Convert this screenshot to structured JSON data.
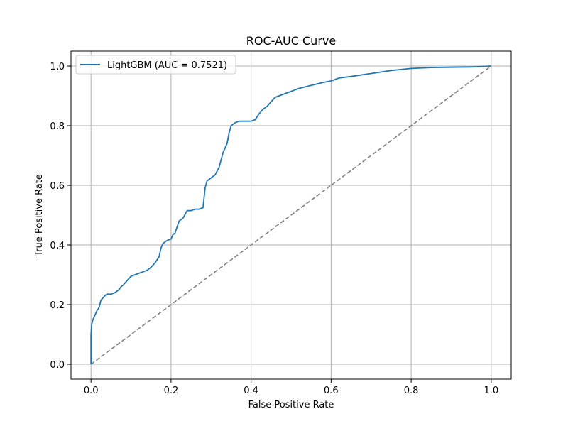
{
  "chart_data": {
    "type": "line",
    "title": "ROC-AUC Curve",
    "xlabel": "False Positive Rate",
    "ylabel": "True Positive Rate",
    "xlim": [
      -0.05,
      1.05
    ],
    "ylim": [
      -0.05,
      1.05
    ],
    "xticks": [
      0.0,
      0.2,
      0.4,
      0.6,
      0.8,
      1.0
    ],
    "yticks": [
      0.0,
      0.2,
      0.4,
      0.6,
      0.8,
      1.0
    ],
    "xtick_labels": [
      "0.0",
      "0.2",
      "0.4",
      "0.6",
      "0.8",
      "1.0"
    ],
    "ytick_labels": [
      "0.0",
      "0.2",
      "0.4",
      "0.6",
      "0.8",
      "1.0"
    ],
    "grid": true,
    "legend_position": "top-left",
    "series": [
      {
        "name": "LightGBM (AUC = 0.7521)",
        "color": "#1f77b4",
        "style": "solid",
        "x": [
          0.0,
          0.0,
          0.002,
          0.005,
          0.01,
          0.015,
          0.02,
          0.025,
          0.035,
          0.04,
          0.05,
          0.06,
          0.07,
          0.075,
          0.08,
          0.09,
          0.1,
          0.11,
          0.12,
          0.13,
          0.14,
          0.15,
          0.16,
          0.17,
          0.175,
          0.18,
          0.19,
          0.2,
          0.205,
          0.21,
          0.22,
          0.23,
          0.24,
          0.25,
          0.26,
          0.27,
          0.28,
          0.285,
          0.29,
          0.295,
          0.3,
          0.31,
          0.32,
          0.33,
          0.34,
          0.345,
          0.35,
          0.36,
          0.37,
          0.38,
          0.39,
          0.4,
          0.41,
          0.42,
          0.43,
          0.44,
          0.45,
          0.46,
          0.47,
          0.48,
          0.5,
          0.52,
          0.55,
          0.58,
          0.6,
          0.62,
          0.65,
          0.7,
          0.75,
          0.8,
          0.85,
          0.9,
          0.95,
          1.0
        ],
        "y": [
          0.0,
          0.1,
          0.135,
          0.15,
          0.165,
          0.18,
          0.19,
          0.215,
          0.23,
          0.235,
          0.235,
          0.24,
          0.25,
          0.26,
          0.265,
          0.28,
          0.295,
          0.3,
          0.305,
          0.31,
          0.315,
          0.325,
          0.34,
          0.36,
          0.39,
          0.405,
          0.415,
          0.42,
          0.435,
          0.44,
          0.48,
          0.49,
          0.515,
          0.515,
          0.52,
          0.52,
          0.525,
          0.59,
          0.615,
          0.62,
          0.625,
          0.635,
          0.66,
          0.71,
          0.74,
          0.775,
          0.8,
          0.81,
          0.815,
          0.815,
          0.815,
          0.815,
          0.82,
          0.84,
          0.855,
          0.865,
          0.88,
          0.895,
          0.9,
          0.905,
          0.915,
          0.925,
          0.935,
          0.945,
          0.95,
          0.96,
          0.965,
          0.975,
          0.985,
          0.992,
          0.995,
          0.996,
          0.997,
          1.0
        ]
      },
      {
        "name": "",
        "color": "#7f7f7f",
        "style": "dashed",
        "x": [
          0.0,
          1.0
        ],
        "y": [
          0.0,
          1.0
        ]
      }
    ]
  }
}
